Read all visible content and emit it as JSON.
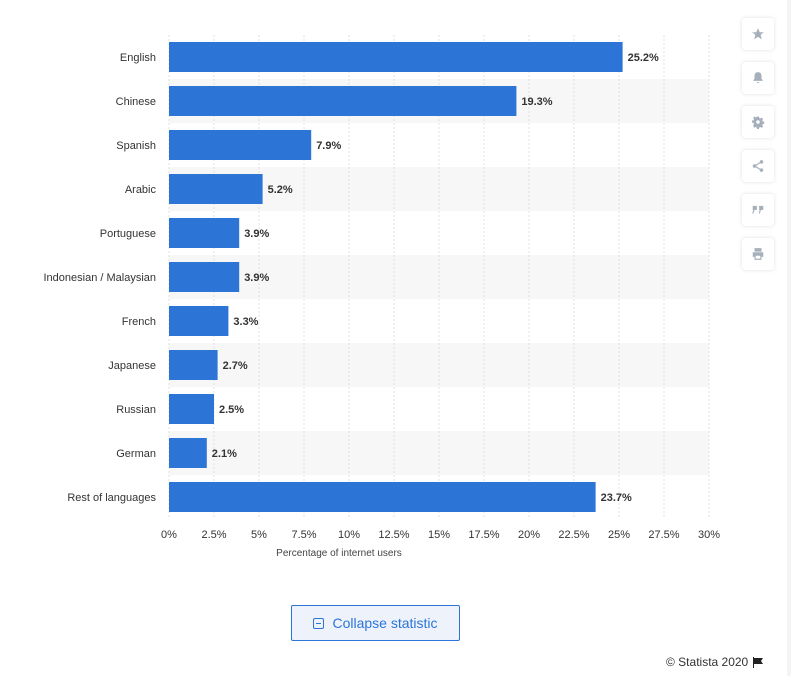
{
  "chart_data": {
    "type": "bar",
    "orientation": "horizontal",
    "categories": [
      "English",
      "Chinese",
      "Spanish",
      "Arabic",
      "Portuguese",
      "Indonesian / Malaysian",
      "French",
      "Japanese",
      "Russian",
      "German",
      "Rest of languages"
    ],
    "values": [
      25.2,
      19.3,
      7.9,
      5.2,
      3.9,
      3.9,
      3.3,
      2.7,
      2.5,
      2.1,
      23.7
    ],
    "value_labels": [
      "25.2%",
      "19.3%",
      "7.9%",
      "5.2%",
      "3.9%",
      "3.9%",
      "3.3%",
      "2.7%",
      "2.5%",
      "2.1%",
      "23.7%"
    ],
    "xlabel": "Percentage of internet users",
    "xlim": [
      0,
      30
    ],
    "xticks": [
      0,
      2.5,
      5,
      7.5,
      10,
      12.5,
      15,
      17.5,
      20,
      22.5,
      25,
      27.5,
      30
    ],
    "xtick_labels": [
      "0%",
      "2.5%",
      "5%",
      "7.5%",
      "10%",
      "12.5%",
      "15%",
      "17.5%",
      "20%",
      "22.5%",
      "25%",
      "27.5%",
      "30%"
    ],
    "bar_color": "#2c74d6",
    "grid": true
  },
  "toolbar": {
    "icons": [
      "star-icon",
      "bell-icon",
      "gear-icon",
      "share-icon",
      "quote-icon",
      "print-icon"
    ]
  },
  "collapse_button": {
    "label": "Collapse statistic"
  },
  "footer": {
    "copyright": "© Statista 2020"
  }
}
